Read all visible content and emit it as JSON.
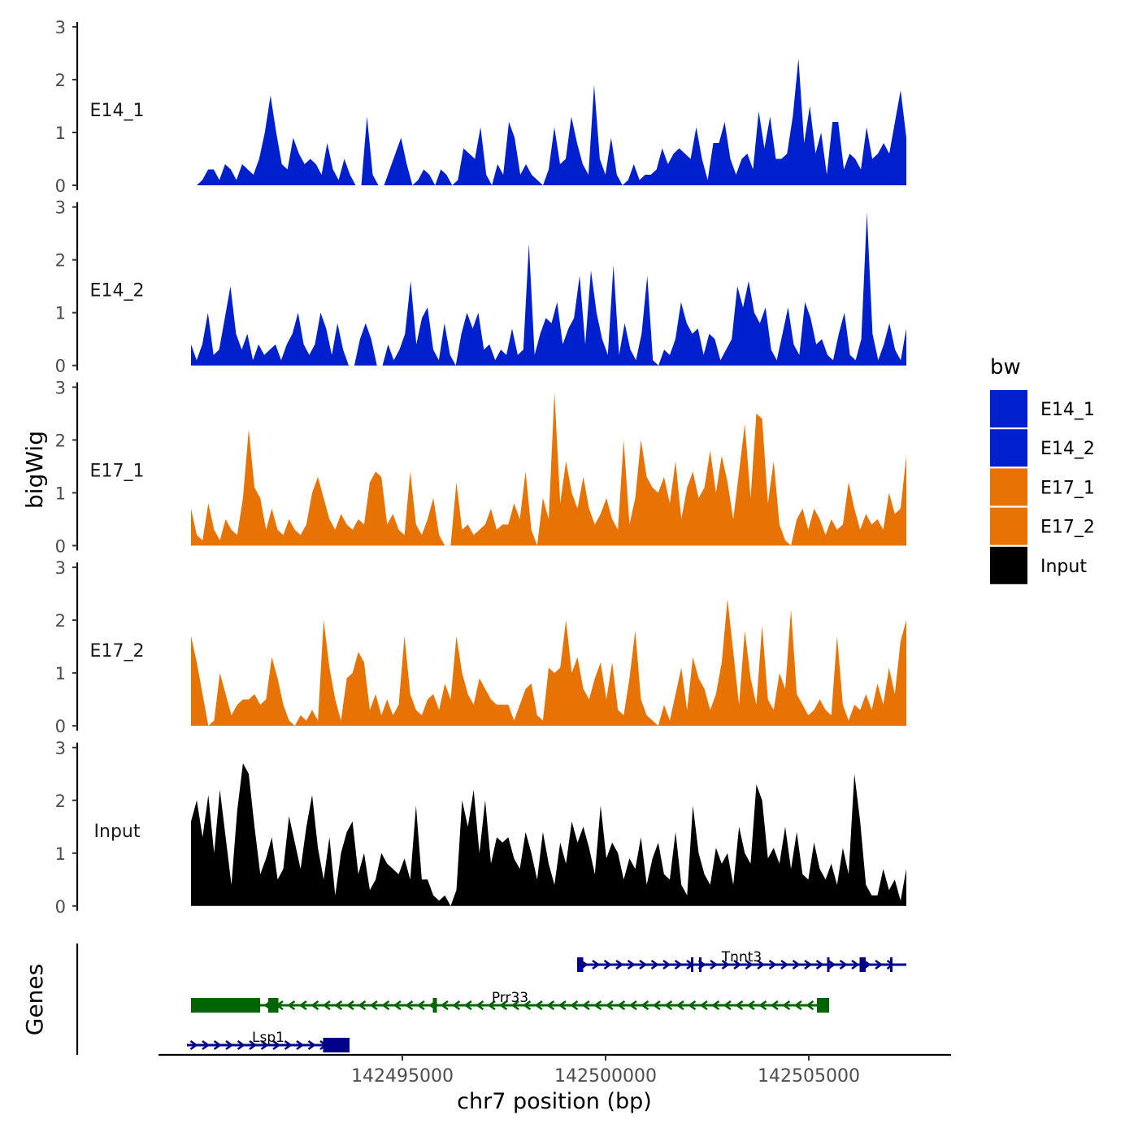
{
  "chart_data": {
    "type": "area",
    "title": "",
    "ylabel": "bigWig",
    "genes_label": "Genes",
    "xlabel": "chr7 position (bp)",
    "xlim": [
      142489000,
      142508500
    ],
    "ylim": [
      0,
      3
    ],
    "y_ticks": [
      "0",
      "1",
      "2",
      "3"
    ],
    "x_ticks": [
      {
        "value": 142495000,
        "label": "142495000"
      },
      {
        "value": 142500000,
        "label": "142500000"
      },
      {
        "value": 142505000,
        "label": "142505000"
      }
    ],
    "legend": {
      "title": "bw",
      "position": "right",
      "entries": [
        {
          "name": "E14_1",
          "color": "#0020CD"
        },
        {
          "name": "E14_2",
          "color": "#0020CD"
        },
        {
          "name": "E17_1",
          "color": "#E87305"
        },
        {
          "name": "E17_2",
          "color": "#E87305"
        },
        {
          "name": "Input",
          "color": "#000000"
        }
      ]
    },
    "x_range": [
      142489800,
      142507400
    ],
    "series": [
      {
        "name": "E14_1",
        "color": "#0020CD",
        "label": "E14_1",
        "points": [
          0,
          0,
          0.1,
          0.3,
          0.3,
          0.1,
          0.4,
          0.3,
          0.1,
          0.4,
          0.3,
          0.2,
          0.5,
          1.0,
          1.7,
          1.0,
          0.4,
          0.3,
          0.9,
          0.6,
          0.4,
          0.5,
          0.4,
          0.2,
          0.8,
          0.3,
          0.1,
          0.5,
          0.2,
          0,
          0,
          1.3,
          0.2,
          0,
          0,
          0.3,
          0.6,
          0.9,
          0.4,
          0,
          0.1,
          0.3,
          0.2,
          0,
          0.3,
          0.2,
          0,
          0.1,
          0.7,
          0.6,
          0.5,
          1.1,
          0.2,
          0,
          0.4,
          0.2,
          1.2,
          0.9,
          0.2,
          0.4,
          0.2,
          0.1,
          0,
          0.3,
          1.1,
          0.4,
          0.5,
          1.3,
          0.8,
          0.4,
          0.2,
          1.9,
          0.5,
          0.2,
          0.9,
          0.2,
          0,
          0.1,
          0.4,
          0.1,
          0.2,
          0.2,
          0.3,
          0.7,
          0.4,
          0.6,
          0.7,
          0.6,
          0.5,
          1.1,
          0.5,
          0.1,
          0.8,
          0.8,
          1.2,
          0.5,
          0.2,
          0.5,
          0.6,
          0.3,
          1.4,
          0.7,
          1.3,
          0.5,
          0.5,
          0.6,
          1.3,
          2.4,
          0.8,
          1.5,
          0.6,
          1.0,
          0.2,
          1.2,
          1.2,
          0.3,
          0.6,
          0.5,
          0.3,
          1.1,
          0.5,
          0.6,
          0.8,
          0.6,
          1.2,
          1.8,
          0.9
        ]
      },
      {
        "name": "E14_2",
        "color": "#0020CD",
        "label": "E14_2",
        "points": [
          0.4,
          0.1,
          0.4,
          1.0,
          0.2,
          0.3,
          0.9,
          1.5,
          0.6,
          0.3,
          0.6,
          0.1,
          0.4,
          0.2,
          0.3,
          0.4,
          0.1,
          0.4,
          0.6,
          1.0,
          0.4,
          0.2,
          0.4,
          1.0,
          0.7,
          0.2,
          0.8,
          0.3,
          0,
          0,
          0.5,
          0.8,
          0.5,
          0,
          0,
          0.4,
          0.1,
          0.3,
          0.6,
          1.6,
          0.4,
          0.9,
          1.1,
          0.3,
          0.1,
          0.8,
          0.2,
          0,
          0.6,
          1.0,
          0.7,
          1.0,
          0.3,
          0.4,
          0.1,
          0.3,
          0.2,
          0.7,
          0.2,
          0.3,
          2.3,
          0.2,
          0.6,
          0.9,
          0.8,
          1.2,
          0.4,
          0.7,
          0.9,
          1.7,
          0.4,
          1.8,
          1.0,
          0.5,
          0.2,
          1.9,
          0.2,
          0.8,
          0.3,
          0.1,
          0.6,
          1.7,
          0.1,
          0,
          0.3,
          0.2,
          0.5,
          1.2,
          0.8,
          0.6,
          0.7,
          0.2,
          0.6,
          0.5,
          0.1,
          0.3,
          0.5,
          1.5,
          1.1,
          1.6,
          1.0,
          0.8,
          1.1,
          0.3,
          0.1,
          0.6,
          1.1,
          0.4,
          0.2,
          1.2,
          0.9,
          0.4,
          0.5,
          0.2,
          0.1,
          0.6,
          1.0,
          0.2,
          0.1,
          0.5,
          2.9,
          0.6,
          0.1,
          0.4,
          0.8,
          0.3,
          0.1,
          0.7
        ]
      },
      {
        "name": "E17_1",
        "color": "#E87305",
        "label": "E17_1",
        "points": [
          0.7,
          0.2,
          0.1,
          0.8,
          0.3,
          0.1,
          0.5,
          0.3,
          0.2,
          0.9,
          2.2,
          1.1,
          0.9,
          0.3,
          0.7,
          0.3,
          0.2,
          0.5,
          0.3,
          0.2,
          0.4,
          1.0,
          1.3,
          0.9,
          0.5,
          0.3,
          0.6,
          0.4,
          0.3,
          0.5,
          0.4,
          1.2,
          1.4,
          1.3,
          0.4,
          0.6,
          0.3,
          0.2,
          1.4,
          0.4,
          0.2,
          0.5,
          0.9,
          0.2,
          0,
          0,
          1.2,
          0.3,
          0.4,
          0.2,
          0.3,
          0.4,
          0.7,
          0.3,
          0.4,
          0.4,
          0.8,
          0.5,
          1.4,
          0.3,
          0,
          0.9,
          0.5,
          2.9,
          0.8,
          1.6,
          1.0,
          0.7,
          1.3,
          0.7,
          0.4,
          0.6,
          0.9,
          0.5,
          0.3,
          2.0,
          0.4,
          0.9,
          2.0,
          1.3,
          1.1,
          1.0,
          1.3,
          0.8,
          1.6,
          0.5,
          1.1,
          1.4,
          0.9,
          1.1,
          1.8,
          1.0,
          1.7,
          1.2,
          0.5,
          1.4,
          2.3,
          0.9,
          2.5,
          2.4,
          0.8,
          1.6,
          0.4,
          0.1,
          0,
          0.5,
          0.7,
          0.3,
          0.7,
          0.5,
          0.2,
          0.5,
          0.3,
          0.4,
          1.2,
          0.7,
          0.3,
          0.6,
          0.4,
          0.5,
          0.3,
          1.0,
          0.6,
          0.7,
          1.7
        ]
      },
      {
        "name": "E17_2",
        "color": "#E87305",
        "label": "E17_2",
        "points": [
          1.7,
          1.2,
          0.6,
          0,
          0.1,
          1.0,
          0.6,
          0.2,
          0.4,
          0.5,
          0.5,
          0.6,
          0.4,
          0.5,
          1.3,
          0.9,
          0.4,
          0.1,
          0,
          0.2,
          0.1,
          0.3,
          0.1,
          2.0,
          1.1,
          0.5,
          0.1,
          0.9,
          1.0,
          1.4,
          1.2,
          0.3,
          0.6,
          0.2,
          0.5,
          0.2,
          0.4,
          1.7,
          0.6,
          0.3,
          0.2,
          0.5,
          0.6,
          0.3,
          0.8,
          0.5,
          1.7,
          1.0,
          0.6,
          0.4,
          0.9,
          0.7,
          0.5,
          0.4,
          0.4,
          0.4,
          0.1,
          0.4,
          0.7,
          0.8,
          0.2,
          0.1,
          1.1,
          1.0,
          1.1,
          2.0,
          1.0,
          1.3,
          0.7,
          0.5,
          0.9,
          1.2,
          0.5,
          1.2,
          0.3,
          0.2,
          0.9,
          1.8,
          0.5,
          0.2,
          0.1,
          0,
          0.4,
          0.1,
          0.6,
          1.1,
          0.3,
          1.3,
          0.9,
          0.7,
          0.3,
          0.6,
          1.2,
          2.4,
          1.4,
          0.4,
          1.8,
          0.9,
          0.4,
          1.9,
          0.5,
          0.3,
          1.0,
          0.7,
          2.2,
          0.6,
          0.4,
          0.2,
          0.3,
          0.5,
          0.3,
          0.2,
          1.7,
          0.4,
          0.1,
          0.4,
          0.3,
          0.6,
          0.3,
          0.8,
          0.4,
          1.1,
          0.6,
          1.6,
          2.0
        ]
      },
      {
        "name": "Input",
        "color": "#000000",
        "label": "Input",
        "points": [
          1.6,
          2.0,
          1.3,
          2.1,
          1.0,
          2.2,
          1.3,
          0.4,
          1.8,
          2.7,
          2.5,
          1.5,
          0.6,
          0.9,
          1.3,
          0.5,
          0.7,
          1.7,
          1.2,
          0.7,
          1.5,
          2.1,
          1.1,
          0.5,
          1.3,
          0.2,
          1.0,
          1.4,
          1.6,
          0.6,
          1.0,
          0.3,
          0.5,
          1.0,
          0.8,
          0.7,
          0.6,
          0.9,
          0.5,
          1.9,
          0.5,
          0.5,
          0.2,
          0.1,
          0.2,
          0,
          0.3,
          2.0,
          1.5,
          2.2,
          1.0,
          2.0,
          0.8,
          1.3,
          1.2,
          1.3,
          0.9,
          0.7,
          1.4,
          1.0,
          0.5,
          1.4,
          0.8,
          0.4,
          1.2,
          0.8,
          1.6,
          1.2,
          1.5,
          1.1,
          0.6,
          1.9,
          0.9,
          1.2,
          1.0,
          0.5,
          0.9,
          0.7,
          1.3,
          0.4,
          0.9,
          1.2,
          0.6,
          0.5,
          1.4,
          0.4,
          0.2,
          1.9,
          1.0,
          0.6,
          0.4,
          1.1,
          0.8,
          1.0,
          0.4,
          1.5,
          1.0,
          0.8,
          2.3,
          2.0,
          0.9,
          1.1,
          0.8,
          1.5,
          0.7,
          1.4,
          0.6,
          0.5,
          1.2,
          0.7,
          0.5,
          0.8,
          0.4,
          1.1,
          0.6,
          2.5,
          1.6,
          0.4,
          0.2,
          0.2,
          0.7,
          0.3,
          0.5,
          0.1,
          0.7
        ]
      }
    ],
    "genes": [
      {
        "name": "Tnnt3",
        "start": 142499300,
        "end": 142507400,
        "strand": "+",
        "color": "#00008B",
        "row": 0,
        "exons": [
          [
            142499300,
            142499450
          ],
          [
            142502100,
            142502150
          ],
          [
            142502300,
            142502350
          ],
          [
            142505450,
            142505500
          ],
          [
            142506250,
            142506400
          ],
          [
            142507000,
            142507050
          ]
        ]
      },
      {
        "name": "Prr33",
        "start": 142489800,
        "end": 142505500,
        "strand": "-",
        "color": "#006400",
        "row": 1,
        "exons": [
          [
            142489800,
            142491500
          ],
          [
            142491700,
            142491950
          ],
          [
            142495750,
            142495850
          ],
          [
            142505200,
            142505500
          ]
        ]
      },
      {
        "name": "Lsp1",
        "start": 142489700,
        "end": 142493700,
        "strand": "+",
        "color": "#00008B",
        "row": 2,
        "exons": [
          [
            142493050,
            142493700
          ]
        ]
      }
    ]
  }
}
